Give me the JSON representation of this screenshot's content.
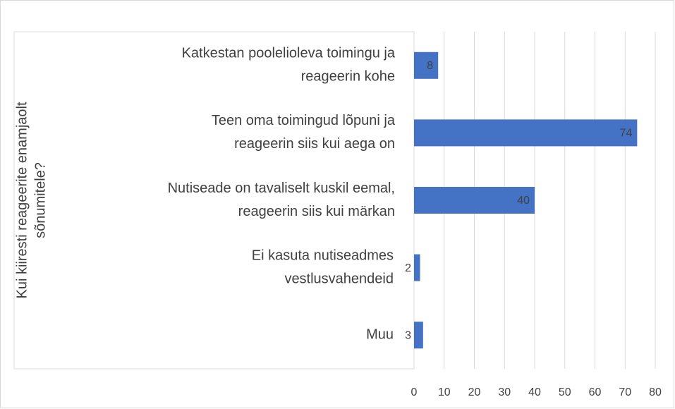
{
  "chart_data": {
    "type": "barh",
    "y_label": [
      "Kui kiiresti reageerite enamjaolt",
      "sõnumitele?"
    ],
    "categories": [
      [
        "Katkestan poolelioleva toimingu ja",
        "reageerin kohe"
      ],
      [
        "Teen oma toimingud lõpuni ja",
        "reageerin siis kui aega on"
      ],
      [
        "Nutiseade on tavaliselt kuskil eemal,",
        "reageerin siis kui märkan"
      ],
      [
        "Ei kasuta nutiseadmes",
        "vestlusvahendeid"
      ],
      [
        "Muu"
      ]
    ],
    "values": [
      8,
      74,
      40,
      2,
      3
    ],
    "color": "#4472c4",
    "xlim": [
      0,
      80
    ],
    "xticks": [
      0,
      10,
      20,
      30,
      40,
      50,
      60,
      70,
      80
    ],
    "grid": true
  }
}
